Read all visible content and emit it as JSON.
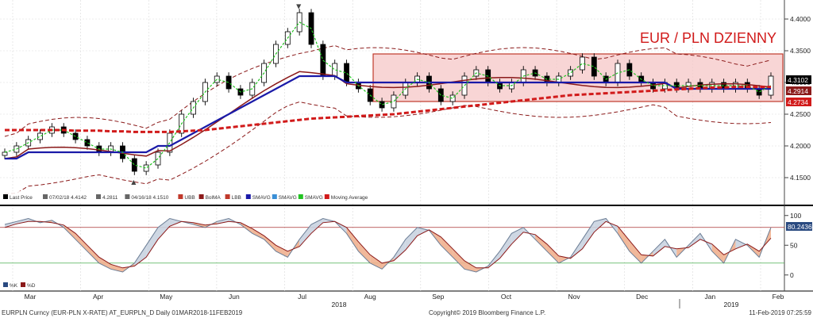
{
  "title": "EUR / PLN DZIENNY",
  "colors": {
    "price_candle": "#000000",
    "bb_line": "#8b1a1a",
    "smavg_long": "#d11a1a",
    "smavg_mid": "#1a1aa8",
    "smavg_fast": "#22c322",
    "bb_mid": "#8b1a1a",
    "highlight_fill": "#f6c7c7",
    "highlight_stroke": "#c0392b",
    "stoch_k": "#6b7d95",
    "stoch_d": "#8b1a1a",
    "stoch_fill_up": "#c9d3e0",
    "stoch_fill_down": "#f0b08f"
  },
  "legend": {
    "items": [
      {
        "label": "Last Price",
        "icon": "candle-icon"
      },
      {
        "label": "07/02/18 4.4142",
        "icon": "high-marker-icon"
      },
      {
        "label": "4.2811",
        "icon": "crosshair-icon"
      },
      {
        "label": "04/16/18 4.1510",
        "icon": "low-marker-icon"
      },
      {
        "label": "UBB",
        "icon": "dashed-red-icon"
      },
      {
        "label": "BolMA",
        "icon": "darkred-line-icon"
      },
      {
        "label": "LBB",
        "icon": "dashed-red-icon"
      },
      {
        "label": "SMAVG",
        "icon": "blue-line-icon"
      },
      {
        "label": "SMAVG",
        "icon": "lightblue-line-icon"
      },
      {
        "label": "SMAVG",
        "icon": "green-dashed-icon"
      },
      {
        "label": "Moving Average",
        "icon": "red-dashed-icon"
      }
    ]
  },
  "price_labels": {
    "last": "4.3102",
    "mid": "4.2914",
    "low": "4.2734"
  },
  "stoch_label": "80.2436",
  "stoch_legend": [
    "%K",
    "%D"
  ],
  "footer": {
    "left": "EURPLN Curncy (EUR-PLN X-RATE) AT_EURPLN_D  Daily 01MAR2018-11FEB2019",
    "center": "Copyright© 2019 Bloomberg Finance L.P.",
    "right": "11-Feb-2019 07:25:59"
  },
  "chart_data": [
    {
      "type": "candlestick",
      "title": "EUR / PLN DZIENNY",
      "x_ticks": [
        "Mar",
        "Apr",
        "May",
        "Jun",
        "Jul",
        "Aug",
        "Sep",
        "Oct",
        "Nov",
        "Dec",
        "Jan",
        "Feb"
      ],
      "year_labels": [
        "2018",
        "2019"
      ],
      "y_ticks": [
        "4.4000",
        "4.3500",
        "4.3000",
        "4.2500",
        "4.2000",
        "4.1500"
      ],
      "ylim": [
        4.13,
        4.42
      ],
      "annotations": {
        "high": {
          "date": "07/02/18",
          "value": 4.4142
        },
        "low": {
          "date": "04/16/18",
          "value": 4.151
        },
        "range_box": {
          "from": "Aug",
          "to": "Feb",
          "upper": 4.345,
          "lower": 4.27
        }
      },
      "series": [
        {
          "name": "Last Price",
          "values": [
            4.19,
            4.2,
            4.21,
            4.22,
            4.23,
            4.22,
            4.21,
            4.2,
            4.19,
            4.2,
            4.18,
            4.16,
            4.17,
            4.19,
            4.22,
            4.25,
            4.27,
            4.3,
            4.31,
            4.29,
            4.28,
            4.3,
            4.33,
            4.36,
            4.38,
            4.41,
            4.36,
            4.31,
            4.33,
            4.3,
            4.29,
            4.27,
            4.26,
            4.28,
            4.3,
            4.31,
            4.29,
            4.27,
            4.28,
            4.31,
            4.32,
            4.3,
            4.29,
            4.3,
            4.32,
            4.31,
            4.3,
            4.31,
            4.32,
            4.34,
            4.31,
            4.3,
            4.33,
            4.31,
            4.3,
            4.29,
            4.3,
            4.29,
            4.3,
            4.29,
            4.3,
            4.29,
            4.3,
            4.29,
            4.28,
            4.31
          ]
        },
        {
          "name": "SMAVG",
          "values": [
            4.18,
            4.18,
            4.19,
            4.19,
            4.19,
            4.19,
            4.19,
            4.19,
            4.19,
            4.19,
            4.19,
            4.19,
            4.19,
            4.2,
            4.2,
            4.21,
            4.22,
            4.23,
            4.24,
            4.25,
            4.26,
            4.27,
            4.28,
            4.29,
            4.3,
            4.31,
            4.31,
            4.31,
            4.31,
            4.3,
            4.3,
            4.3,
            4.3,
            4.3,
            4.3,
            4.3,
            4.3,
            4.3,
            4.3,
            4.3,
            4.3,
            4.3,
            4.3,
            4.3,
            4.3,
            4.3,
            4.3,
            4.3,
            4.3,
            4.3,
            4.3,
            4.3,
            4.3,
            4.3,
            4.3,
            4.3,
            4.3,
            4.29,
            4.29,
            4.29,
            4.29,
            4.29,
            4.29,
            4.29,
            4.29,
            4.29
          ]
        },
        {
          "name": "Moving Average",
          "values": [
            4.225,
            4.225,
            4.225,
            4.225,
            4.225,
            4.225,
            4.224,
            4.224,
            4.224,
            4.223,
            4.223,
            4.222,
            4.222,
            4.222,
            4.222,
            4.223,
            4.224,
            4.225,
            4.227,
            4.229,
            4.231,
            4.233,
            4.235,
            4.237,
            4.239,
            4.241,
            4.243,
            4.244,
            4.245,
            4.246,
            4.247,
            4.248,
            4.249,
            4.25,
            4.252,
            4.254,
            4.256,
            4.258,
            4.26,
            4.262,
            4.264,
            4.266,
            4.268,
            4.27,
            4.272,
            4.274,
            4.276,
            4.278,
            4.28,
            4.281,
            4.282,
            4.283,
            4.284,
            4.285,
            4.286,
            4.287,
            4.288,
            4.289,
            4.29,
            4.291,
            4.292,
            4.292,
            4.293,
            4.293,
            4.293,
            4.293
          ]
        }
      ]
    },
    {
      "type": "line",
      "title": "",
      "y_ticks": [
        "100",
        "50",
        "0"
      ],
      "ylim": [
        -15,
        105
      ],
      "series": [
        {
          "name": "%K",
          "values": [
            85,
            90,
            95,
            88,
            92,
            80,
            60,
            40,
            20,
            10,
            5,
            20,
            50,
            80,
            95,
            90,
            85,
            80,
            90,
            95,
            85,
            70,
            60,
            40,
            30,
            60,
            85,
            95,
            90,
            70,
            40,
            20,
            10,
            30,
            60,
            80,
            75,
            50,
            30,
            10,
            5,
            15,
            40,
            70,
            80,
            60,
            40,
            20,
            30,
            60,
            90,
            95,
            70,
            40,
            20,
            40,
            60,
            30,
            50,
            70,
            40,
            20,
            60,
            50,
            30,
            80
          ]
        },
        {
          "name": "%D",
          "values": [
            80,
            86,
            90,
            90,
            88,
            84,
            70,
            50,
            30,
            18,
            12,
            15,
            30,
            60,
            82,
            90,
            88,
            84,
            86,
            90,
            88,
            78,
            66,
            50,
            40,
            48,
            70,
            88,
            90,
            80,
            56,
            34,
            20,
            24,
            42,
            66,
            76,
            64,
            44,
            24,
            12,
            12,
            28,
            52,
            72,
            68,
            52,
            32,
            28,
            44,
            72,
            90,
            82,
            58,
            34,
            32,
            48,
            44,
            46,
            60,
            52,
            34,
            44,
            52,
            40,
            62
          ]
        }
      ]
    }
  ]
}
